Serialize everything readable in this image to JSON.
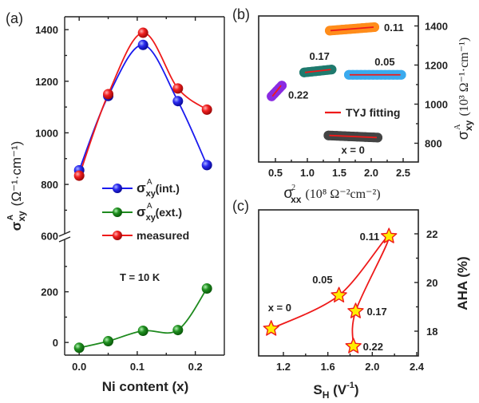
{
  "chart_data": [
    {
      "panel": "(a)",
      "type": "line",
      "title": "",
      "xlabel": "Ni content (x)",
      "ylabel": "σ_xy^A (Ω⁻¹·cm⁻¹)",
      "xlim": [
        -0.025,
        0.25
      ],
      "ylim_lower": [
        -50,
        413
      ],
      "ylim_upper": [
        593,
        1450
      ],
      "axis_break": "between 600 (upper segment) and ~400 (lower segment)",
      "xticks": [
        "0.0",
        "0.1",
        "0.2"
      ],
      "xtick_values": [
        0.0,
        0.1,
        0.2
      ],
      "yticks_upper": [
        "600",
        "800",
        "1000",
        "1200",
        "1400"
      ],
      "ytick_values_upper": [
        600,
        800,
        1000,
        1200,
        1400
      ],
      "yticks_lower": [
        "0",
        "200"
      ],
      "ytick_values_lower": [
        0,
        200
      ],
      "x": [
        0.0,
        0.05,
        0.11,
        0.17,
        0.22
      ],
      "series": [
        {
          "name": "σxyA(int.)",
          "legend_main": "σ",
          "legend_sub": "xy",
          "legend_sup": "A",
          "legend_suffix": "(int.)",
          "color": "#1a1aee",
          "values": [
            855,
            1143,
            1341,
            1123,
            875
          ],
          "segment": "upper"
        },
        {
          "name": "σxyA(ext.)",
          "legend_main": "σ",
          "legend_sub": "xy",
          "legend_sup": "A",
          "legend_suffix": "(ext.)",
          "color": "#1e8a1e",
          "values": [
            -21,
            5,
            46,
            49,
            213
          ],
          "segment": "lower"
        },
        {
          "name": "measured",
          "legend_main": "measured",
          "legend_sub": "",
          "legend_sup": "",
          "legend_suffix": "",
          "color": "#ee1a1a",
          "values": [
            834,
            1150,
            1388,
            1172,
            1090
          ],
          "segment": "upper"
        }
      ],
      "legend_placement": "center-left",
      "annotations": [
        "T = 10 K"
      ]
    },
    {
      "panel": "(b)",
      "type": "scatter",
      "xlabel": "σ²xx (10⁸ Ω⁻²cm⁻²)",
      "ylabel": "σ_xy^A (10³ Ω⁻¹·cm⁻¹)",
      "ylabel_side": "right",
      "xlim": [
        0.24,
        2.74
      ],
      "ylim": [
        705,
        1475
      ],
      "xticks": [
        "0.5",
        "1.0",
        "1.5",
        "2.0",
        "2.5"
      ],
      "xtick_values": [
        0.5,
        1.0,
        1.5,
        2.0,
        2.5
      ],
      "yticks": [
        "800",
        "1000",
        "1200",
        "1400"
      ],
      "ytick_values": [
        800,
        1000,
        1200,
        1400
      ],
      "series": [
        {
          "name": "0.11",
          "color": "#ff8c1a",
          "x_range": [
            1.35,
            2.05
          ],
          "y_range": [
            1376,
            1394
          ],
          "label_pos": "right"
        },
        {
          "name": "0.17",
          "color": "#1f7a6e",
          "x_range": [
            0.95,
            1.38
          ],
          "y_range": [
            1162,
            1177
          ],
          "label_pos": "above"
        },
        {
          "name": "0.05",
          "color": "#3aaaee",
          "x_range": [
            1.65,
            2.47
          ],
          "y_range": [
            1150,
            1150
          ],
          "label_pos": "above-right"
        },
        {
          "name": "0.22",
          "color": "#8a2be2",
          "x_range": [
            0.44,
            0.6
          ],
          "y_range": [
            1040,
            1095
          ],
          "label_pos": "right"
        },
        {
          "name": "x = 0",
          "color": "#444444",
          "x_range": [
            1.33,
            2.1
          ],
          "y_range": [
            840,
            829
          ],
          "label_pos": "below"
        }
      ],
      "fit": {
        "name": "TYJ fitting",
        "color": "#ee1a1a"
      },
      "legend_placement": "center-right"
    },
    {
      "panel": "(c)",
      "type": "line",
      "xlabel": "S_H (V⁻¹)",
      "ylabel": "AHA (%)",
      "ylabel_side": "right",
      "xlim": [
        0.98,
        2.41
      ],
      "ylim": [
        17.0,
        22.97
      ],
      "xticks": [
        "1.2",
        "1.6",
        "2.0",
        "2.4"
      ],
      "xtick_values": [
        1.2,
        1.6,
        2.0,
        2.4
      ],
      "yticks": [
        "18",
        "20",
        "22"
      ],
      "ytick_values": [
        18,
        20,
        22
      ],
      "marker": "star",
      "marker_fill": "#ffee00",
      "color": "#ee1a1a",
      "points": [
        {
          "label": "x = 0",
          "x": 1.09,
          "y": 18.1
        },
        {
          "label": "0.05",
          "x": 1.7,
          "y": 19.47
        },
        {
          "label": "0.11",
          "x": 2.15,
          "y": 21.9
        },
        {
          "label": "0.17",
          "x": 1.85,
          "y": 18.82
        },
        {
          "label": "0.22",
          "x": 1.83,
          "y": 17.38
        }
      ]
    }
  ],
  "labels": {
    "panel_a": "(a)",
    "panel_b": "(b)",
    "panel_c": "(c)",
    "fit_legend": "TYJ fitting",
    "temperature": "T = 10 K",
    "a_xlabel": "Ni content (x)",
    "c_xlabel_main": "S",
    "c_xlabel_sub": "H",
    "c_xlabel_rest": " (V",
    "c_xlabel_sup": "-1",
    "c_xlabel_end": ")",
    "c_ylabel": "AHA (%)"
  }
}
